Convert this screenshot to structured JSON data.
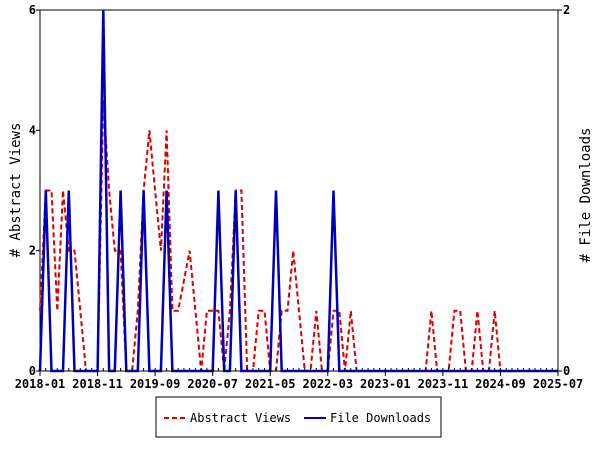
{
  "chart_data": {
    "type": "line",
    "title": "",
    "xlabel": "",
    "ylabel": "# Abstract Views",
    "y2label": "# File Downloads",
    "x_start": "2018-01",
    "x_end": "2025-07",
    "x_ticks": [
      "2018-01",
      "2018-11",
      "2019-09",
      "2020-07",
      "2021-05",
      "2022-03",
      "2023-01",
      "2023-11",
      "2024-09",
      "2025-07"
    ],
    "y_ticks": [
      "0",
      "2",
      "4",
      "6"
    ],
    "y2_ticks": [
      "0",
      "2"
    ],
    "ylim": [
      0,
      6
    ],
    "y2lim": [
      0,
      2
    ],
    "grid": false,
    "legend_placement": "bottom",
    "series": [
      {
        "name": "Abstract Views",
        "axis": "left",
        "color": "#dd0000",
        "style": "dashed",
        "values": [
          1,
          3,
          3,
          1,
          3,
          2,
          2,
          1,
          0,
          0,
          0,
          4.5,
          3,
          2,
          2,
          0,
          0,
          1,
          3,
          4,
          3,
          2,
          4,
          1,
          1,
          1.5,
          2,
          1,
          0,
          1,
          1,
          1,
          0,
          1,
          3,
          3,
          0,
          0,
          1,
          1,
          0,
          0,
          1,
          1,
          2,
          1,
          0,
          0,
          1,
          0,
          0,
          1,
          1,
          0,
          1,
          0,
          0,
          0,
          0,
          0,
          0,
          0,
          0,
          0,
          0,
          0,
          0,
          0,
          1,
          0,
          0,
          0,
          1,
          1,
          0,
          0,
          1,
          0,
          0,
          1,
          0,
          0,
          0,
          0,
          0,
          0,
          0,
          0,
          0,
          0,
          0
        ]
      },
      {
        "name": "File Downloads",
        "axis": "right",
        "color": "#0000bb",
        "style": "solid",
        "values": [
          0,
          1,
          0,
          0,
          0,
          1,
          0,
          0,
          0,
          0,
          0,
          2,
          0,
          0,
          1,
          0,
          0,
          0,
          1,
          0,
          0,
          0,
          1,
          0,
          0,
          0,
          0,
          0,
          0,
          0,
          0,
          1,
          0,
          0,
          1,
          0,
          0,
          0,
          0,
          0,
          0,
          1,
          0,
          0,
          0,
          0,
          0,
          0,
          0,
          0,
          0,
          1,
          0,
          0,
          0,
          0,
          0,
          0,
          0,
          0,
          0,
          0,
          0,
          0,
          0,
          0,
          0,
          0,
          0,
          0,
          0,
          0,
          0,
          0,
          0,
          0,
          0,
          0,
          0,
          0,
          0,
          0,
          0,
          0,
          0,
          0,
          0,
          0,
          0,
          0,
          0
        ]
      }
    ]
  }
}
